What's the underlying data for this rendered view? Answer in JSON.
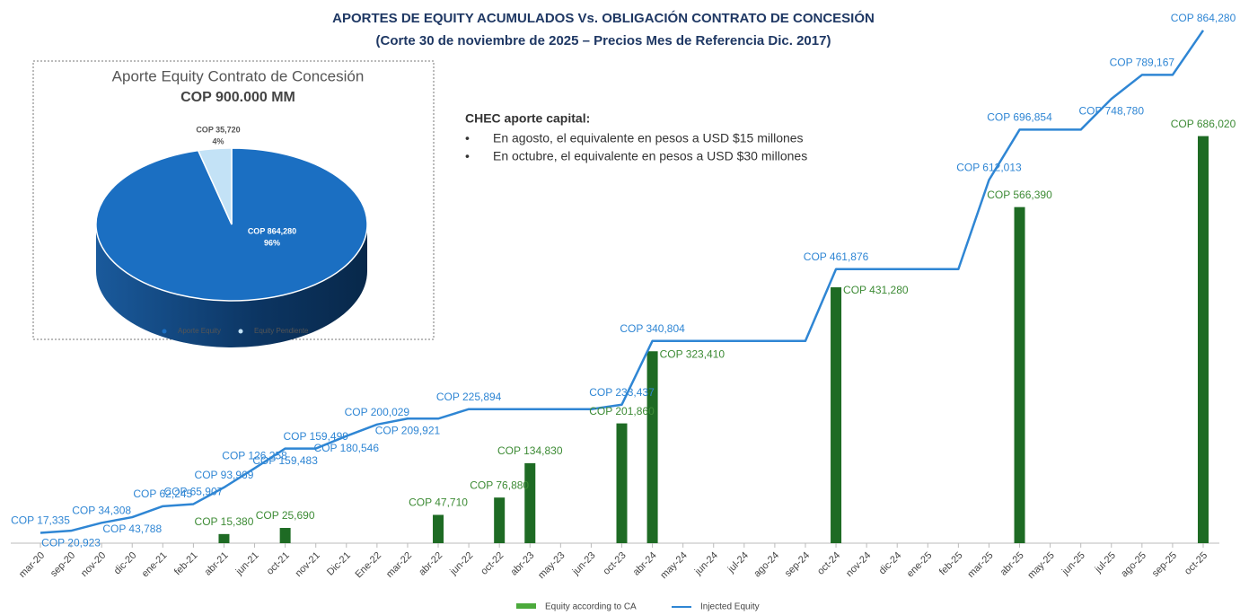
{
  "chart_data": [
    {
      "type": "combo",
      "title": "APORTES DE EQUITY ACUMULADOS Vs. OBLIGACIÓN CONTRATO DE CONCESIÓN",
      "subtitle": "(Corte 30 de noviembre de 2025 – Precios Mes de Referencia Dic. 2017)",
      "annotation_heading": "CHEC aporte capital:",
      "annotation_bullets": [
        "En agosto, el equivalente en pesos a USD $15 millones",
        "En octubre, el equivalente en pesos a USD $30 millones"
      ],
      "categories": [
        "mar-20",
        "sep-20",
        "nov-20",
        "dic-20",
        "ene-21",
        "feb-21",
        "abr-21",
        "jun-21",
        "oct-21",
        "nov-21",
        "Dic-21",
        "Ene-22",
        "mar-22",
        "abr-22",
        "jun-22",
        "oct-22",
        "abr-23",
        "may-23",
        "jun-23",
        "oct-23",
        "abr-24",
        "may-24",
        "jun-24",
        "jul-24",
        "ago-24",
        "sep-24",
        "oct-24",
        "nov-24",
        "dic-24",
        "ene-25",
        "feb-25",
        "mar-25",
        "abr-25",
        "may-25",
        "jun-25",
        "jul-25",
        "ago-25",
        "sep-25",
        "oct-25"
      ],
      "ylim": [
        0,
        870000
      ],
      "legend": "bottom",
      "series": [
        {
          "name": "Equity according to CA",
          "type": "bar",
          "color": "#1e6b24",
          "legend_color": "#4caa3c",
          "label_color": "#3d8b35",
          "values": [
            null,
            null,
            null,
            null,
            null,
            null,
            15380,
            null,
            25690,
            null,
            null,
            null,
            null,
            47710,
            null,
            76880,
            134830,
            null,
            null,
            201860,
            323410,
            null,
            null,
            null,
            null,
            null,
            431280,
            null,
            null,
            null,
            null,
            null,
            566390,
            null,
            null,
            null,
            null,
            null,
            686020
          ],
          "value_labels": [
            null,
            null,
            null,
            null,
            null,
            null,
            "COP 15,380",
            null,
            "COP 25,690",
            null,
            null,
            null,
            null,
            "COP 47,710",
            null,
            "COP 76,880",
            "COP 134,830",
            null,
            null,
            "COP 201,860",
            "COP 323,410",
            null,
            null,
            null,
            null,
            null,
            "COP 431,280",
            null,
            null,
            null,
            null,
            null,
            "COP 566,390",
            null,
            null,
            null,
            null,
            null,
            "COP 686,020"
          ]
        },
        {
          "name": "Injected Equity",
          "type": "line",
          "color": "#2f86d4",
          "label_color": "#2f86d4",
          "values": [
            17335,
            20923,
            34308,
            43788,
            62245,
            65907,
            93969,
            126258,
            159483,
            159499,
            180546,
            200029,
            209921,
            209921,
            225894,
            225894,
            225894,
            225894,
            225894,
            233437,
            340804,
            340804,
            340804,
            340804,
            340804,
            340804,
            461876,
            461876,
            461876,
            461876,
            461876,
            612013,
            696854,
            696854,
            696854,
            748780,
            789167,
            789167,
            864280
          ],
          "value_labels": [
            "COP 17,335",
            "COP 20,923",
            "COP 34,308",
            "COP 43,788",
            "COP 62,245",
            "COP 65,907",
            "COP 93,969",
            "COP 126,258",
            "COP 159,483",
            "COP 159,499",
            "COP 180,546",
            "COP 200,029",
            "COP 209,921",
            null,
            "COP 225,894",
            null,
            null,
            null,
            null,
            "COP 233,437",
            "COP 340,804",
            null,
            null,
            null,
            null,
            null,
            "COP 461,876",
            null,
            null,
            null,
            null,
            "COP 612,013",
            "COP 696,854",
            null,
            null,
            "COP 748,780",
            "COP 789,167",
            null,
            "COP 864,280"
          ]
        }
      ]
    },
    {
      "type": "pie",
      "title": "Aporte Equity Contrato de Concesión",
      "subtitle": "COP 900.000 MM",
      "categories": [
        "Aporte Equity",
        "Equity Pendiente"
      ],
      "values": [
        864280,
        35720
      ],
      "value_labels": [
        "COP 864,280",
        "COP 35,720"
      ],
      "percent_labels": [
        "96%",
        "4%"
      ],
      "colors": [
        "#1b6fc2",
        "#c3e2f6"
      ],
      "legend": "bottom"
    }
  ]
}
